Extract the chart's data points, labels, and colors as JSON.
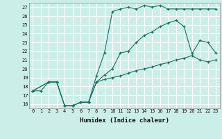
{
  "xlabel": "Humidex (Indice chaleur)",
  "ylabel": "",
  "bg_color": "#cceee8",
  "line_color": "#1a7060",
  "grid_color": "#ffffff",
  "xlim": [
    -0.5,
    23.5
  ],
  "ylim": [
    15.5,
    27.5
  ],
  "yticks": [
    16,
    17,
    18,
    19,
    20,
    21,
    22,
    23,
    24,
    25,
    26,
    27
  ],
  "xticks": [
    0,
    1,
    2,
    3,
    4,
    5,
    6,
    7,
    8,
    9,
    10,
    11,
    12,
    13,
    14,
    15,
    16,
    17,
    18,
    19,
    20,
    21,
    22,
    23
  ],
  "line1_x": [
    0,
    1,
    2,
    3,
    4,
    5,
    6,
    7,
    8,
    9,
    10,
    11,
    12,
    13,
    14,
    15,
    16,
    17,
    18,
    19,
    20,
    21,
    22,
    23
  ],
  "line1_y": [
    17.5,
    17.5,
    18.5,
    18.5,
    15.8,
    15.8,
    16.2,
    16.2,
    19.2,
    21.8,
    26.5,
    26.8,
    27.0,
    26.8,
    27.2,
    27.0,
    27.2,
    26.8,
    26.8,
    26.8,
    26.8,
    26.8,
    26.8,
    26.8
  ],
  "line2_x": [
    0,
    2,
    3,
    4,
    5,
    6,
    7,
    8,
    9,
    10,
    11,
    12,
    13,
    14,
    15,
    16,
    17,
    18,
    19,
    20,
    21,
    22,
    23
  ],
  "line2_y": [
    17.5,
    18.5,
    18.5,
    15.8,
    15.8,
    16.2,
    16.2,
    18.5,
    19.3,
    20.0,
    21.8,
    22.0,
    23.0,
    23.8,
    24.2,
    24.8,
    25.2,
    25.5,
    24.8,
    21.7,
    23.2,
    23.0,
    21.8
  ],
  "line3_x": [
    0,
    2,
    3,
    4,
    5,
    6,
    7,
    8,
    9,
    10,
    11,
    12,
    13,
    14,
    15,
    16,
    17,
    18,
    19,
    20,
    21,
    22,
    23
  ],
  "line3_y": [
    17.5,
    18.5,
    18.5,
    15.8,
    15.8,
    16.2,
    16.2,
    18.5,
    18.8,
    19.0,
    19.2,
    19.5,
    19.8,
    20.0,
    20.2,
    20.5,
    20.7,
    21.0,
    21.2,
    21.5,
    21.0,
    20.8,
    21.0
  ]
}
